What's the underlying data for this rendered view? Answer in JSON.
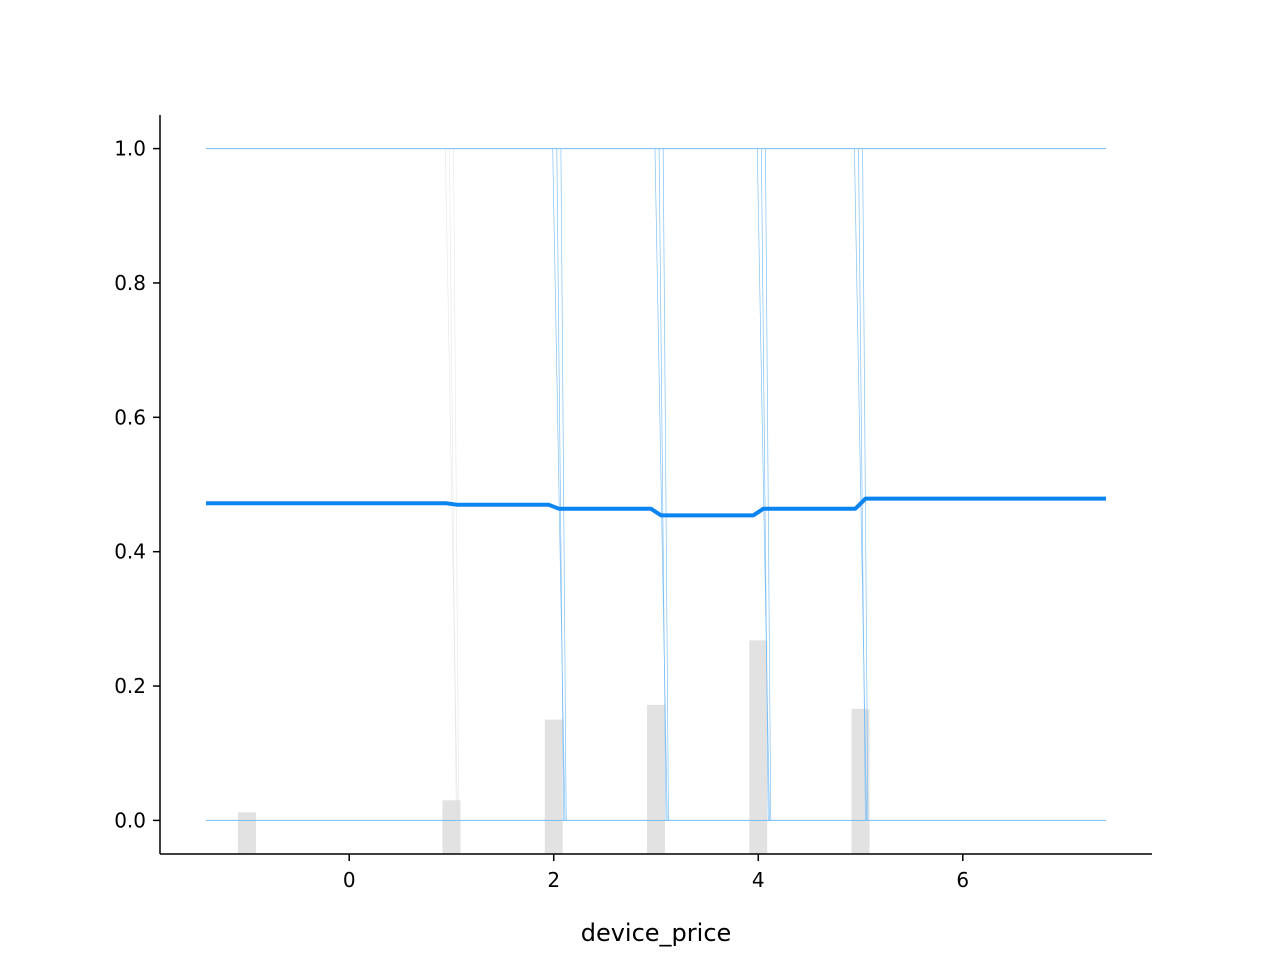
{
  "chart_data": {
    "type": "line",
    "title": "",
    "xlabel": "device_price",
    "ylabel": "",
    "xlim": [
      -1.85,
      7.85
    ],
    "ylim": [
      -0.05,
      1.05
    ],
    "x_ticks": [
      0,
      2,
      4,
      6
    ],
    "x_tick_labels": [
      "0",
      "2",
      "4",
      "6"
    ],
    "y_ticks": [
      0.0,
      0.2,
      0.4,
      0.6,
      0.8,
      1.0
    ],
    "y_tick_labels": [
      "0.0",
      "0.2",
      "0.4",
      "0.6",
      "0.8",
      "1.0"
    ],
    "grid": false,
    "colors": {
      "average": "#0a84f0",
      "ice": "#74baf5",
      "histogram": "#e2e2e2",
      "axis": "#000000"
    },
    "series": [
      {
        "name": "average",
        "x": [
          -1.4,
          0.95,
          1.0,
          1.05,
          1.95,
          2.05,
          2.95,
          3.05,
          3.95,
          4.05,
          4.95,
          5.05,
          7.4
        ],
        "y": [
          0.472,
          0.472,
          0.471,
          0.47,
          0.47,
          0.464,
          0.464,
          0.454,
          0.454,
          0.464,
          0.464,
          0.479,
          0.479
        ]
      }
    ],
    "ice_lines": {
      "lower_value": 0.0,
      "upper_value": 1.0,
      "x_range": [
        -1.4,
        7.4
      ],
      "transitions": [
        1.0,
        2.05,
        3.05,
        4.05,
        5.0
      ]
    },
    "histogram": {
      "x": [
        -1,
        1,
        2,
        3,
        4,
        5
      ],
      "values": [
        0.012,
        0.03,
        0.15,
        0.172,
        0.268,
        0.166
      ]
    }
  }
}
